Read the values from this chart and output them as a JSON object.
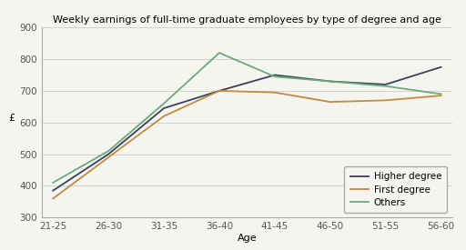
{
  "title": "Weekly earnings of full-time graduate employees by type of degree and age",
  "xlabel": "Age",
  "ylabel": "£",
  "age_labels": [
    "21-25",
    "26-30",
    "31-35",
    "36-40",
    "41-45",
    "46-50",
    "51-55",
    "56-60"
  ],
  "series": {
    "Higher degree": {
      "values": [
        385,
        500,
        645,
        700,
        750,
        730,
        720,
        775
      ],
      "color": "#3a3f5c",
      "linewidth": 1.3
    },
    "First degree": {
      "values": [
        360,
        490,
        620,
        700,
        695,
        665,
        670,
        685
      ],
      "color": "#c4893a",
      "linewidth": 1.3
    },
    "Others": {
      "values": [
        410,
        510,
        660,
        820,
        745,
        730,
        715,
        690
      ],
      "color": "#6aaa7a",
      "linewidth": 1.3
    }
  },
  "ylim": [
    300,
    900
  ],
  "yticks": [
    300,
    400,
    500,
    600,
    700,
    800,
    900
  ],
  "background_color": "#f5f5f0",
  "plot_bg_color": "#f5f5f0",
  "title_fontsize": 8,
  "axis_label_fontsize": 8,
  "tick_fontsize": 7.5,
  "legend_fontsize": 7.5
}
